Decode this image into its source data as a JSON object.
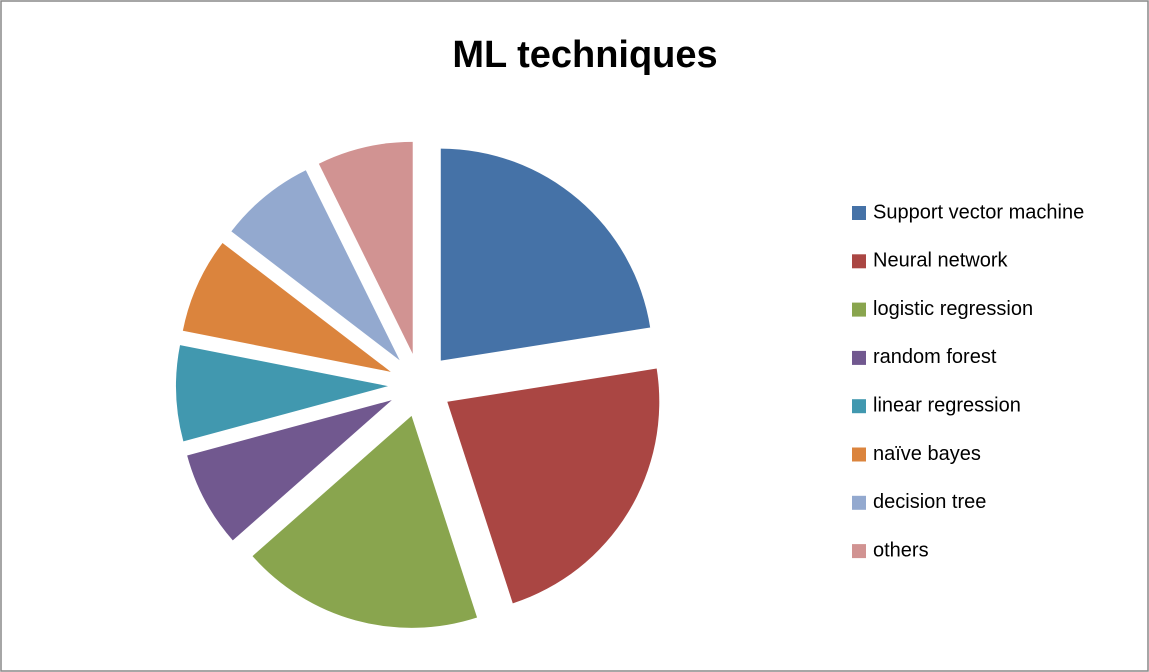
{
  "chart_data": {
    "type": "pie",
    "title": "ML techniques",
    "categories": [
      "Support vector machine",
      "Neural network",
      "logistic regression",
      "random  forest",
      "linear regression",
      "naïve bayes",
      "decision tree",
      "others"
    ],
    "values": [
      22.5,
      22.5,
      18.5,
      7.3,
      7.3,
      7.3,
      7.3,
      7.3
    ],
    "colors": [
      "#4572a7",
      "#aa4643",
      "#89a54e",
      "#71588f",
      "#4198af",
      "#db843d",
      "#93a9cf",
      "#d19392"
    ],
    "legend": "right"
  }
}
